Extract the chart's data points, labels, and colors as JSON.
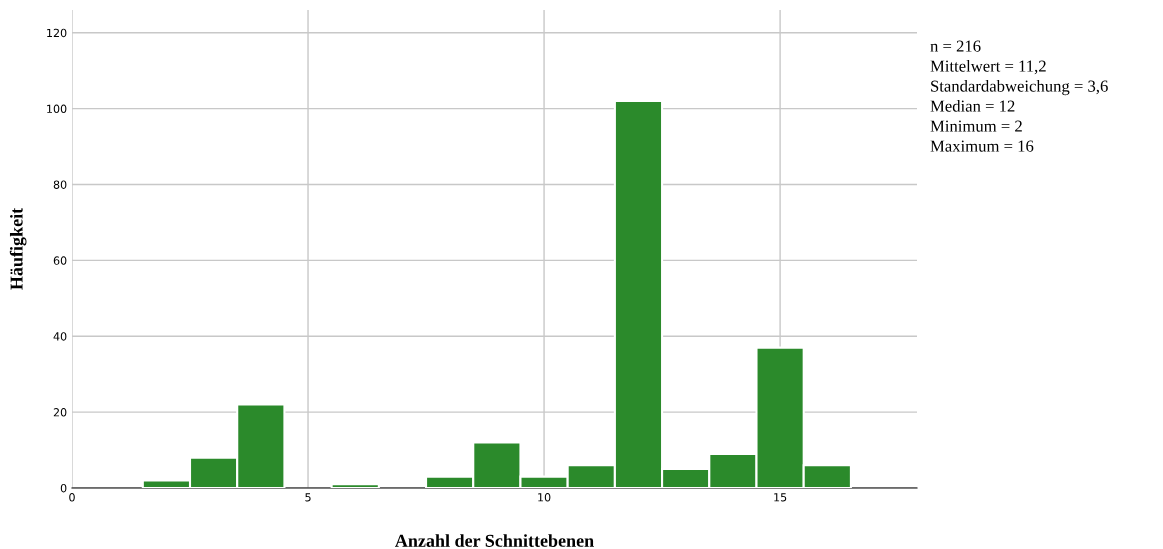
{
  "chart_data": {
    "type": "histogram",
    "xlabel": "Anzahl der Schnittebenen",
    "ylabel": "Häufigkeit",
    "bins": [
      1.5,
      2.5,
      3.5,
      4.5,
      5.5,
      6.5,
      7.5,
      8.5,
      9.5,
      10.5,
      11.5,
      12.5,
      13.5,
      14.5,
      15.5,
      16.5
    ],
    "values": [
      2,
      8,
      22,
      0,
      1,
      0,
      3,
      12,
      3,
      6,
      102,
      5,
      9,
      37,
      6
    ],
    "color": "#2b8a2b",
    "xlim": [
      0,
      17.9
    ],
    "xticks": [
      0,
      5,
      10,
      15
    ],
    "ylim": [
      0,
      126
    ],
    "yticks": [
      0,
      20,
      40,
      60,
      80,
      100,
      120
    ],
    "grid": true,
    "annotations": [
      "n = 216",
      "Mittelwert = 11,2",
      "Standardabweichung = 3,6",
      "Median = 12",
      "Minimum = 2",
      "Maximum = 16"
    ]
  }
}
